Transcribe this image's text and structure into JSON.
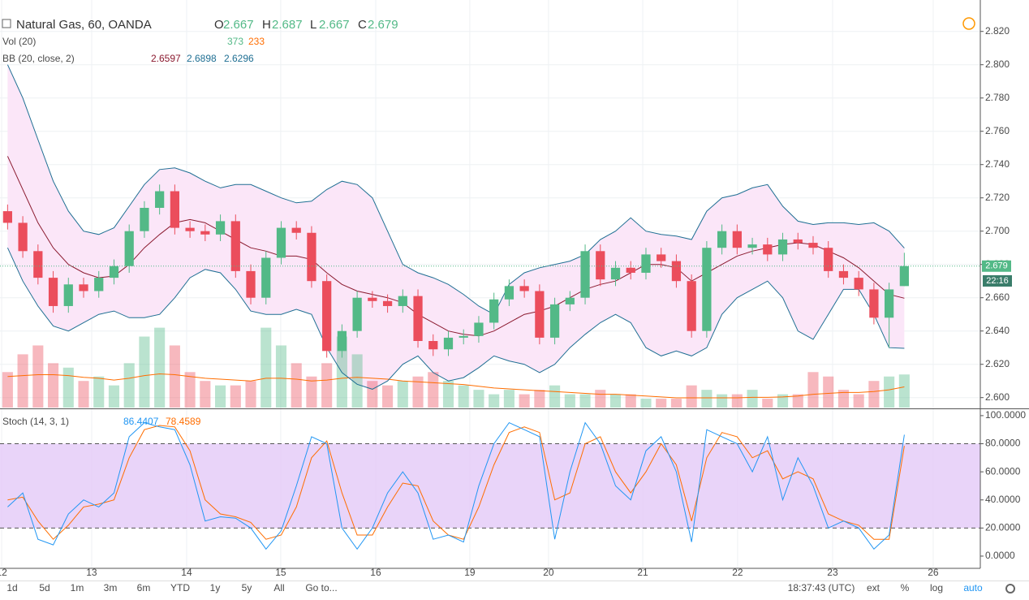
{
  "chart_data": {
    "type": "candlestick",
    "title": "Natural Gas, 60, OANDA",
    "ohlc_labels": [
      "O",
      "H",
      "L",
      "C"
    ],
    "open": [
      2.712,
      2.705,
      2.688,
      2.672,
      2.655,
      2.668,
      2.664,
      2.672,
      2.679,
      2.7,
      2.714,
      2.724,
      2.702,
      2.7,
      2.698,
      2.706,
      2.676,
      2.66,
      2.684,
      2.702,
      2.699,
      2.67,
      2.628,
      2.64,
      2.66,
      2.658,
      2.655,
      2.661,
      2.634,
      2.629,
      2.636,
      2.637,
      2.645,
      2.659,
      2.667,
      2.664,
      2.636,
      2.656,
      2.66,
      2.688,
      2.671,
      2.678,
      2.675,
      2.686,
      2.682,
      2.67,
      2.64,
      2.69,
      2.7,
      2.69,
      2.692,
      2.686,
      2.695,
      2.693,
      2.69,
      2.676,
      2.672,
      2.665,
      2.648,
      2.667
    ],
    "high": [
      2.716,
      2.709,
      2.692,
      2.676,
      2.672,
      2.672,
      2.676,
      2.683,
      2.704,
      2.718,
      2.728,
      2.728,
      2.706,
      2.704,
      2.71,
      2.71,
      2.68,
      2.688,
      2.706,
      2.706,
      2.703,
      2.674,
      2.644,
      2.664,
      2.664,
      2.662,
      2.665,
      2.665,
      2.638,
      2.64,
      2.641,
      2.649,
      2.663,
      2.671,
      2.671,
      2.668,
      2.66,
      2.664,
      2.692,
      2.692,
      2.682,
      2.682,
      2.69,
      2.69,
      2.686,
      2.674,
      2.694,
      2.704,
      2.704,
      2.696,
      2.696,
      2.699,
      2.699,
      2.697,
      2.694,
      2.68,
      2.676,
      2.669,
      2.669,
      2.687
    ],
    "low": [
      2.701,
      2.684,
      2.668,
      2.651,
      2.651,
      2.66,
      2.66,
      2.668,
      2.675,
      2.696,
      2.71,
      2.698,
      2.696,
      2.694,
      2.694,
      2.672,
      2.656,
      2.656,
      2.68,
      2.695,
      2.666,
      2.624,
      2.624,
      2.636,
      2.654,
      2.651,
      2.651,
      2.63,
      2.625,
      2.625,
      2.632,
      2.633,
      2.641,
      2.655,
      2.66,
      2.632,
      2.632,
      2.652,
      2.656,
      2.667,
      2.667,
      2.671,
      2.671,
      2.678,
      2.666,
      2.636,
      2.636,
      2.686,
      2.686,
      2.686,
      2.682,
      2.682,
      2.689,
      2.686,
      2.672,
      2.668,
      2.661,
      2.644,
      2.63,
      2.667
    ],
    "close": [
      2.705,
      2.688,
      2.672,
      2.655,
      2.668,
      2.664,
      2.672,
      2.679,
      2.7,
      2.714,
      2.724,
      2.702,
      2.7,
      2.698,
      2.706,
      2.676,
      2.66,
      2.684,
      2.702,
      2.699,
      2.67,
      2.628,
      2.64,
      2.66,
      2.658,
      2.655,
      2.661,
      2.634,
      2.629,
      2.636,
      2.637,
      2.645,
      2.659,
      2.667,
      2.664,
      2.636,
      2.656,
      2.66,
      2.688,
      2.671,
      2.678,
      2.675,
      2.686,
      2.682,
      2.67,
      2.64,
      2.69,
      2.7,
      2.69,
      2.692,
      2.686,
      2.695,
      2.693,
      2.69,
      2.676,
      2.672,
      2.665,
      2.648,
      2.665,
      2.679
    ],
    "up_color": "#53b987",
    "down_color": "#eb4d5c",
    "countdown": "22:16",
    "xlim": [
      -0.5,
      64
    ],
    "xticks": [
      {
        "value": -0.39,
        "label": "12"
      },
      {
        "value": 5.53,
        "label": "13"
      },
      {
        "value": 11.78,
        "label": "14"
      },
      {
        "value": 17.97,
        "label": "15"
      },
      {
        "value": 24.22,
        "label": "16"
      },
      {
        "value": 30.41,
        "label": "19"
      },
      {
        "value": 35.59,
        "label": "20"
      },
      {
        "value": 41.79,
        "label": "21"
      },
      {
        "value": 48.03,
        "label": "22"
      },
      {
        "value": 54.28,
        "label": "23"
      },
      {
        "value": 60.9,
        "label": "26"
      }
    ],
    "ylim": [
      2.594,
      2.834
    ],
    "yticks": [
      {
        "value": 2.6,
        "label": "2.600"
      },
      {
        "value": 2.62,
        "label": "2.620"
      },
      {
        "value": 2.64,
        "label": "2.640"
      },
      {
        "value": 2.66,
        "label": "2.660"
      },
      {
        "value": 2.68,
        "label": "2.680"
      },
      {
        "value": 2.7,
        "label": "2.700"
      },
      {
        "value": 2.72,
        "label": "2.720"
      },
      {
        "value": 2.74,
        "label": "2.740"
      },
      {
        "value": 2.76,
        "label": "2.760"
      },
      {
        "value": 2.78,
        "label": "2.780"
      },
      {
        "value": 2.8,
        "label": "2.800"
      },
      {
        "value": 2.82,
        "label": "2.820"
      }
    ],
    "grid": true,
    "volume": {
      "name": "Vol (20)",
      "ylim": [
        0,
        4500
      ],
      "ma_color": "#ff6d00",
      "values": [
        400,
        600,
        700,
        500,
        450,
        300,
        350,
        250,
        500,
        800,
        900,
        700,
        400,
        300,
        250,
        250,
        300,
        900,
        700,
        500,
        350,
        500,
        800,
        600,
        300,
        250,
        300,
        350,
        400,
        300,
        250,
        200,
        150,
        200,
        150,
        200,
        250,
        150,
        150,
        200,
        150,
        150,
        100,
        100,
        100,
        250,
        200,
        150,
        150,
        200,
        100,
        150,
        150,
        400,
        350,
        200,
        150,
        300,
        350,
        373
      ],
      "ma": [
        350,
        360,
        370,
        370,
        360,
        340,
        330,
        310,
        330,
        360,
        380,
        370,
        350,
        330,
        320,
        310,
        300,
        330,
        330,
        320,
        300,
        310,
        330,
        340,
        330,
        320,
        300,
        290,
        280,
        270,
        260,
        240,
        220,
        210,
        200,
        190,
        180,
        170,
        160,
        150,
        150,
        140,
        130,
        120,
        110,
        110,
        110,
        110,
        110,
        115,
        115,
        120,
        130,
        150,
        160,
        170,
        170,
        180,
        200,
        233
      ]
    },
    "bb": {
      "name": "BB (20, close, 2)",
      "band_color": "#1f6f93",
      "middle_color": "#8b1a2f",
      "fill": "#fbe6f8",
      "middle": [
        2.745,
        2.725,
        2.705,
        2.69,
        2.68,
        2.675,
        2.672,
        2.673,
        2.68,
        2.69,
        2.698,
        2.705,
        2.707,
        2.705,
        2.7,
        2.695,
        2.69,
        2.688,
        2.685,
        2.685,
        2.683,
        2.675,
        2.668,
        2.664,
        2.662,
        2.66,
        2.657,
        2.65,
        2.645,
        2.64,
        2.638,
        2.637,
        2.64,
        2.645,
        2.65,
        2.652,
        2.655,
        2.66,
        2.665,
        2.668,
        2.67,
        2.675,
        2.68,
        2.68,
        2.678,
        2.67,
        2.675,
        2.68,
        2.685,
        2.688,
        2.69,
        2.692,
        2.693,
        2.692,
        2.688,
        2.684,
        2.678,
        2.67,
        2.662,
        2.6597
      ],
      "upper": [
        2.8,
        2.78,
        2.755,
        2.73,
        2.712,
        2.7,
        2.698,
        2.702,
        2.715,
        2.728,
        2.737,
        2.738,
        2.735,
        2.73,
        2.726,
        2.728,
        2.728,
        2.724,
        2.72,
        2.717,
        2.718,
        2.725,
        2.73,
        2.728,
        2.72,
        2.7,
        2.68,
        2.675,
        2.672,
        2.668,
        2.662,
        2.655,
        2.65,
        2.668,
        2.675,
        2.678,
        2.68,
        2.682,
        2.686,
        2.695,
        2.7,
        2.708,
        2.7,
        2.698,
        2.697,
        2.695,
        2.712,
        2.72,
        2.722,
        2.726,
        2.728,
        2.715,
        2.706,
        2.704,
        2.705,
        2.705,
        2.704,
        2.705,
        2.7,
        2.6898
      ],
      "lower": [
        2.69,
        2.67,
        2.655,
        2.643,
        2.64,
        2.645,
        2.65,
        2.652,
        2.648,
        2.648,
        2.65,
        2.66,
        2.672,
        2.677,
        2.675,
        2.665,
        2.652,
        2.65,
        2.65,
        2.653,
        2.65,
        2.63,
        2.615,
        2.608,
        2.605,
        2.61,
        2.62,
        2.625,
        2.615,
        2.61,
        2.612,
        2.618,
        2.625,
        2.622,
        2.62,
        2.615,
        2.62,
        2.63,
        2.638,
        2.645,
        2.65,
        2.645,
        2.63,
        2.625,
        2.628,
        2.625,
        2.63,
        2.65,
        2.66,
        2.665,
        2.67,
        2.66,
        2.64,
        2.635,
        2.65,
        2.665,
        2.665,
        2.65,
        2.63,
        2.6296
      ]
    },
    "stoch": {
      "name": "Stoch (14, 3, 1)",
      "k_color": "#2196f3",
      "d_color": "#ff6d00",
      "band_fill": "#e4c9f7",
      "ylim": [
        -8.7,
        104
      ],
      "yticks": [
        {
          "value": 0,
          "label": "0.0000"
        },
        {
          "value": 20,
          "label": "20.0000"
        },
        {
          "value": 40,
          "label": "40.0000"
        },
        {
          "value": 60,
          "label": "60.0000"
        },
        {
          "value": 80,
          "label": "80.0000"
        },
        {
          "value": 100,
          "label": "100.0000"
        }
      ],
      "bands": [
        20,
        80
      ],
      "k": [
        35,
        45,
        12,
        8,
        30,
        40,
        35,
        45,
        85,
        95,
        92,
        90,
        65,
        25,
        28,
        27,
        20,
        5,
        18,
        50,
        85,
        80,
        20,
        5,
        20,
        45,
        60,
        45,
        12,
        15,
        10,
        50,
        80,
        95,
        90,
        85,
        12,
        60,
        95,
        80,
        50,
        40,
        75,
        85,
        60,
        10,
        90,
        85,
        80,
        60,
        85,
        40,
        70,
        50,
        20,
        25,
        20,
        5,
        15,
        86.4407
      ],
      "d": [
        40,
        42,
        25,
        12,
        22,
        35,
        37,
        40,
        70,
        90,
        93,
        92,
        75,
        40,
        30,
        28,
        24,
        12,
        15,
        35,
        70,
        82,
        45,
        15,
        15,
        35,
        52,
        50,
        25,
        15,
        12,
        35,
        65,
        88,
        92,
        88,
        40,
        45,
        80,
        85,
        60,
        45,
        60,
        80,
        65,
        25,
        70,
        88,
        85,
        70,
        75,
        55,
        60,
        55,
        30,
        25,
        22,
        12,
        12,
        78.4589
      ]
    }
  },
  "toolbar": {
    "ranges": [
      "1d",
      "5d",
      "1m",
      "3m",
      "6m",
      "YTD",
      "1y",
      "5y",
      "All"
    ],
    "goto": "Go to...",
    "clock": "18:37:43 (UTC)",
    "options": [
      "ext",
      "%",
      "log",
      "auto"
    ]
  }
}
